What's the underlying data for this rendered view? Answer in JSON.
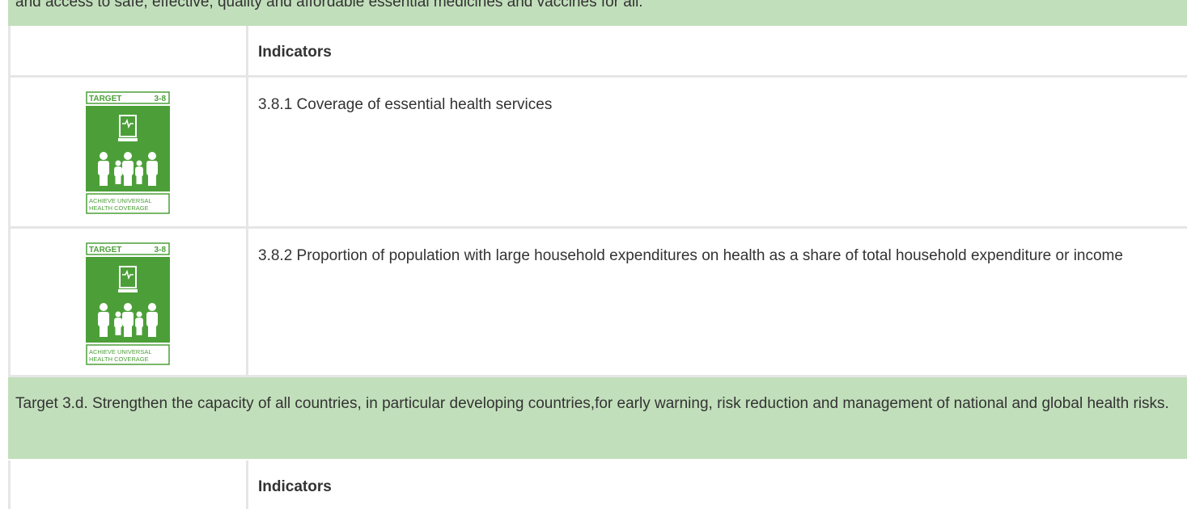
{
  "top_band": {
    "text": "and access to safe, effective, quality and affordable essential medicines and vaccines for all."
  },
  "table": {
    "header": {
      "indicators": "Indicators"
    },
    "rows": [
      {
        "icon": {
          "label": "TARGET",
          "number": "3-8",
          "caption": [
            "ACHIEVE UNIVERSAL",
            "HEALTH COVERAGE"
          ]
        },
        "indicator": "3.8.1 Coverage of essential health services"
      },
      {
        "icon": {
          "label": "TARGET",
          "number": "3-8",
          "caption": [
            "ACHIEVE UNIVERSAL",
            "HEALTH COVERAGE"
          ]
        },
        "indicator": "3.8.2 Proportion of population with large household expenditures on health as a share of total household expenditure or income"
      }
    ]
  },
  "target_band": {
    "text": "Target 3.d. Strengthen the capacity of all countries, in particular developing countries,for early warning, risk reduction and management of national and global health risks."
  },
  "next_table": {
    "header": {
      "indicators": "Indicators"
    }
  }
}
